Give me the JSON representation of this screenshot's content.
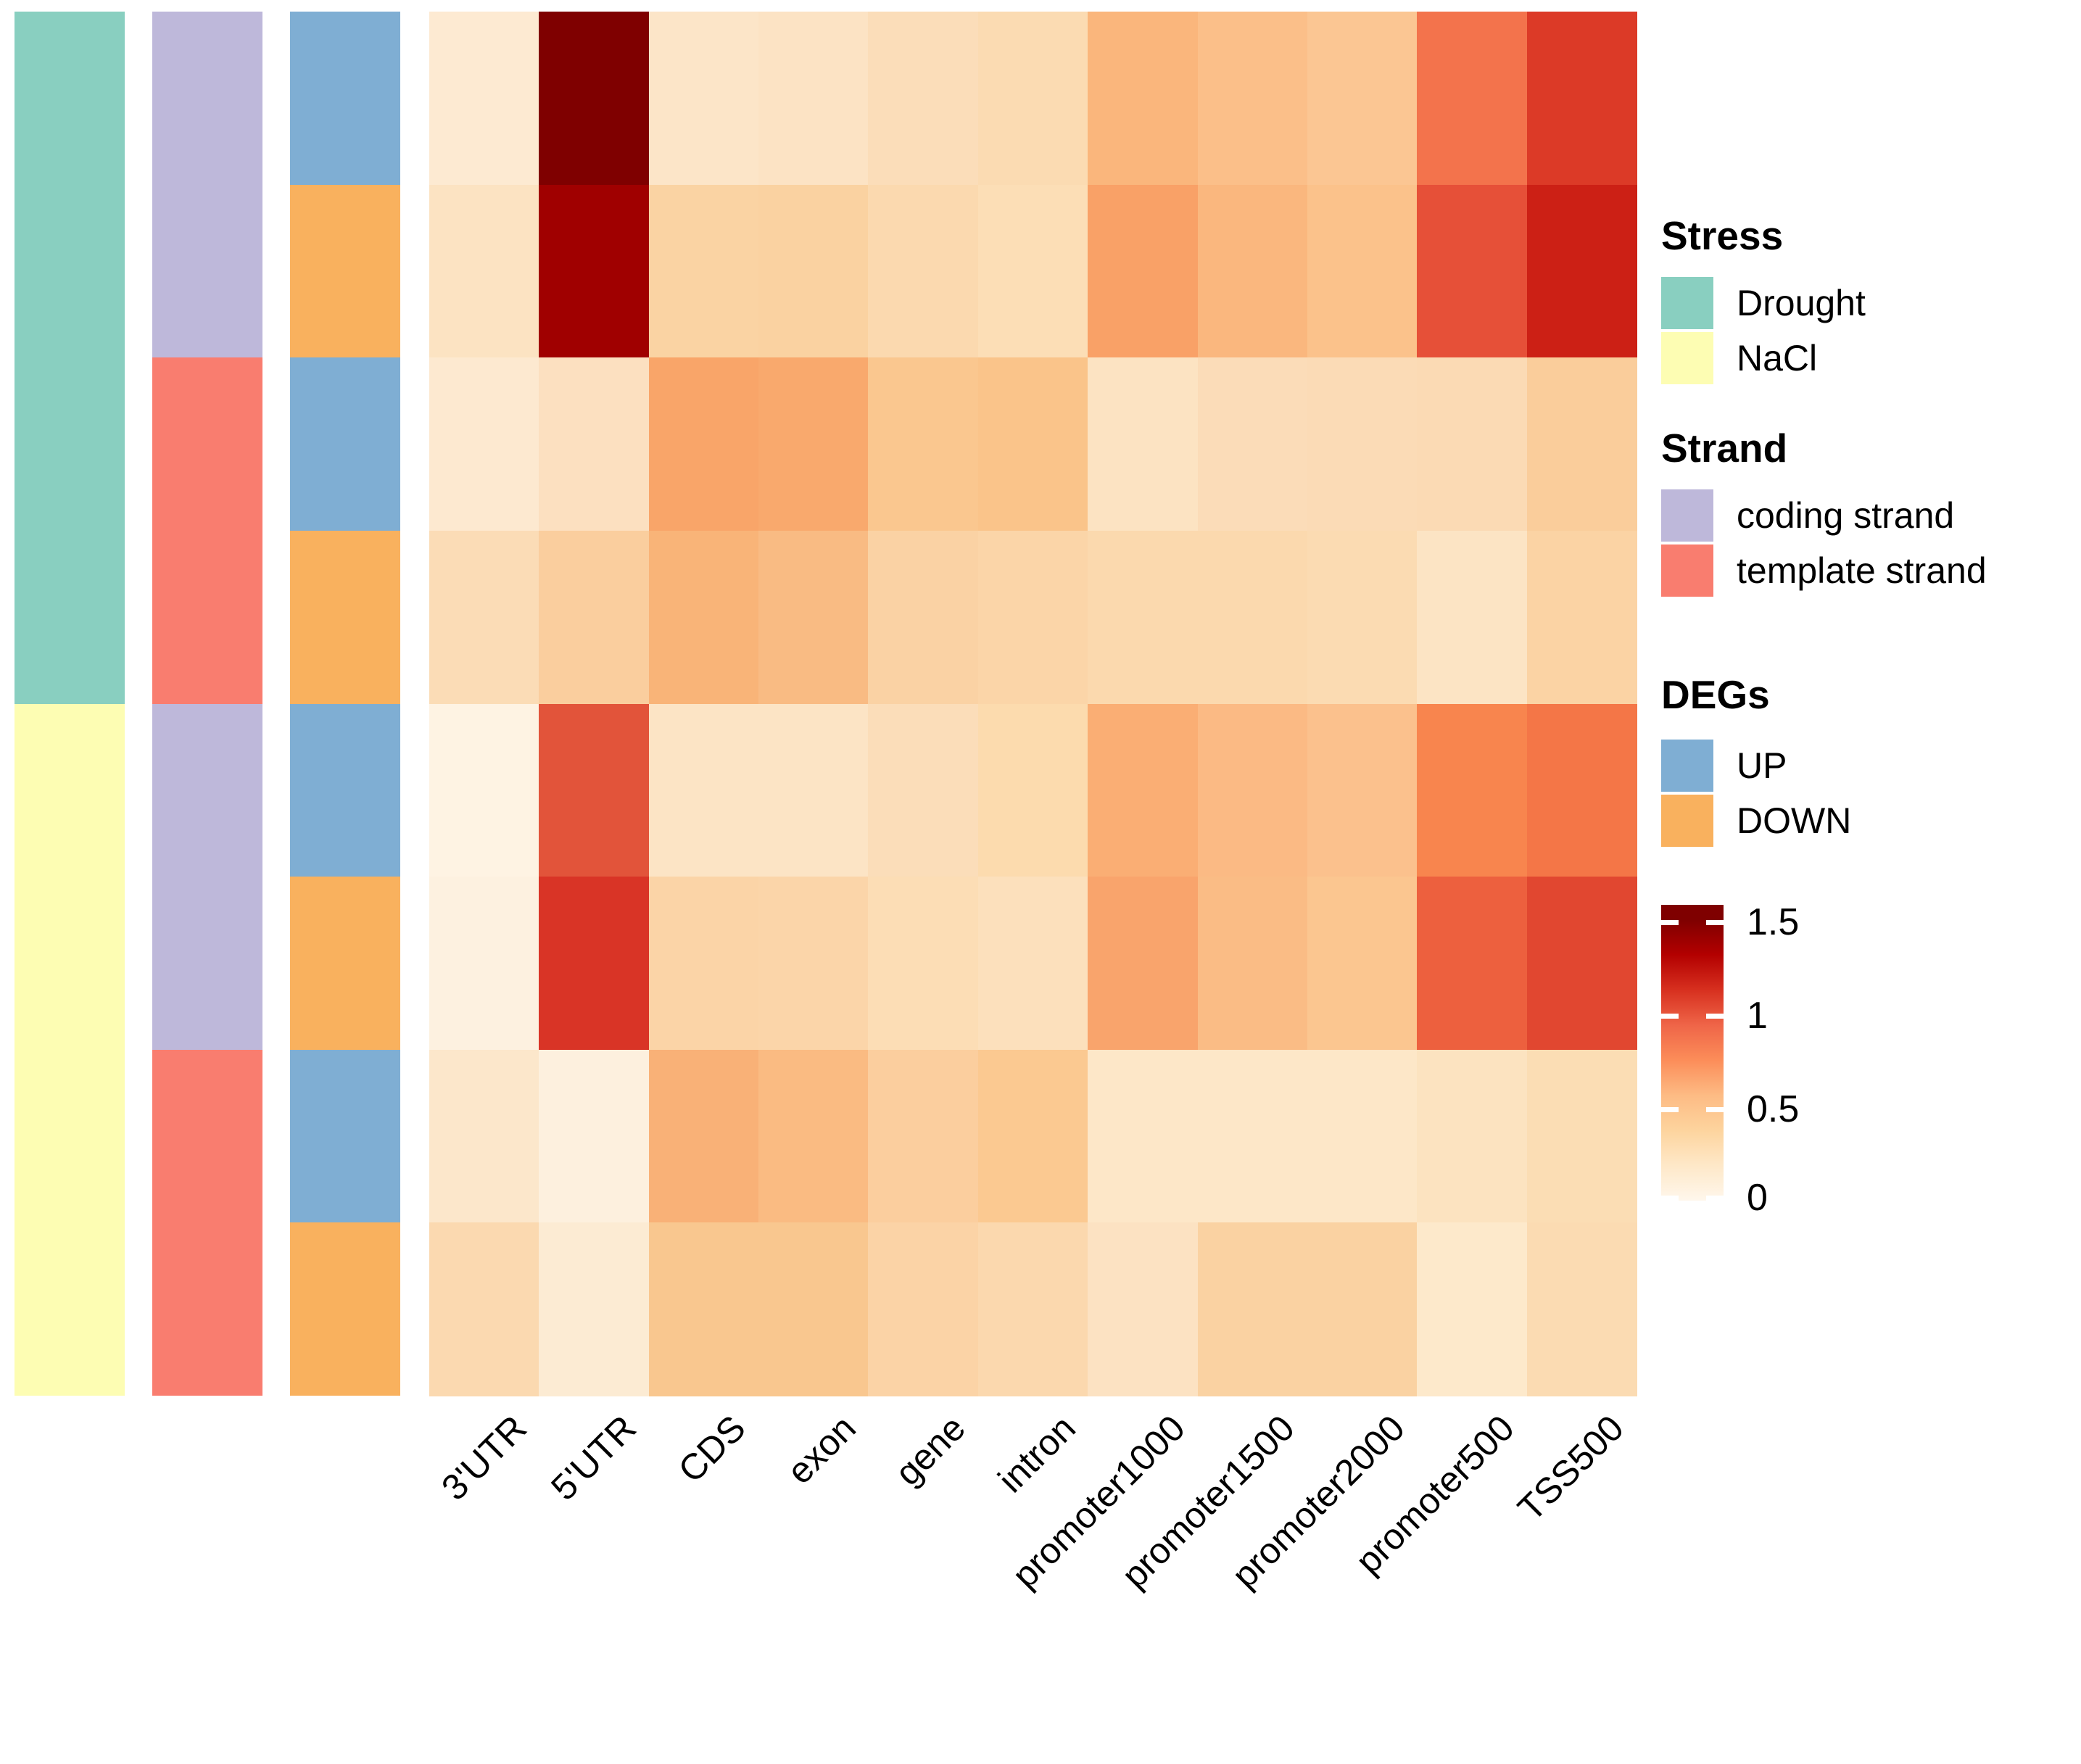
{
  "heatmap": {
    "columns": [
      "3'UTR",
      "5'UTR",
      "CDS",
      "exon",
      "gene",
      "intron",
      "promoter1000",
      "promoter1500",
      "promoter2000",
      "promoter500",
      "TSS500"
    ],
    "rows": [
      {
        "stress": "Drought",
        "strand": "coding strand",
        "deg": "UP",
        "colors": [
          "#FDEAD2",
          "#7F0000",
          "#FCE5C8",
          "#FCE3C4",
          "#FBDDB9",
          "#FBDBB2",
          "#FAB67C",
          "#FBBF89",
          "#FBC693",
          "#F3734C",
          "#DC3A27"
        ],
        "values": [
          0.17,
          1.5,
          0.2,
          0.22,
          0.26,
          0.29,
          0.59,
          0.54,
          0.5,
          0.9,
          1.09
        ]
      },
      {
        "stress": "Drought",
        "strand": "coding strand",
        "deg": "DOWN",
        "colors": [
          "#FCE3C2",
          "#A00000",
          "#FAD3A3",
          "#FAD2A1",
          "#FBD9AF",
          "#FCDEB6",
          "#F9A167",
          "#FAB77E",
          "#FBC28B",
          "#E65038",
          "#CC2015"
        ],
        "values": [
          0.23,
          1.39,
          0.38,
          0.39,
          0.31,
          0.27,
          0.68,
          0.58,
          0.52,
          1.0,
          1.17
        ]
      },
      {
        "stress": "Drought",
        "strand": "template strand",
        "deg": "UP",
        "colors": [
          "#FDE9D0",
          "#FCE0C0",
          "#F9A569",
          "#F9A96D",
          "#FAC78F",
          "#FAC48A",
          "#FCE3C2",
          "#FBDCB8",
          "#FBDBB6",
          "#FBDAB4",
          "#FACD9B"
        ],
        "values": [
          0.17,
          0.24,
          0.66,
          0.64,
          0.49,
          0.51,
          0.22,
          0.28,
          0.29,
          0.29,
          0.43
        ]
      },
      {
        "stress": "Drought",
        "strand": "template strand",
        "deg": "DOWN",
        "colors": [
          "#FBDCB6",
          "#FACE9E",
          "#F9B478",
          "#F9BB83",
          "#FAD2A4",
          "#FBD5A8",
          "#FBD9AE",
          "#FBD9AE",
          "#FBDBB2",
          "#FCE4C4",
          "#FBD3A4"
        ],
        "values": [
          0.28,
          0.42,
          0.6,
          0.56,
          0.39,
          0.36,
          0.32,
          0.32,
          0.29,
          0.21,
          0.38
        ]
      },
      {
        "stress": "NaCl",
        "strand": "coding strand",
        "deg": "UP",
        "colors": [
          "#FEF3E3",
          "#E2543A",
          "#FCE4C5",
          "#FCE4C5",
          "#FBDDB9",
          "#FCDBAE",
          "#FAAE74",
          "#FBBA84",
          "#FBC18D",
          "#F8854E",
          "#F47647"
        ],
        "values": [
          0.06,
          0.98,
          0.21,
          0.21,
          0.26,
          0.3,
          0.62,
          0.56,
          0.53,
          0.81,
          0.89
        ]
      },
      {
        "stress": "NaCl",
        "strand": "coding strand",
        "deg": "DOWN",
        "colors": [
          "#FDF1E0",
          "#D93426",
          "#FBD4A7",
          "#FBD5A9",
          "#FCDDB5",
          "#FCE0BC",
          "#F9A46C",
          "#FABC85",
          "#FBC690",
          "#ED603E",
          "#E14730"
        ],
        "values": [
          0.09,
          1.12,
          0.37,
          0.36,
          0.27,
          0.25,
          0.66,
          0.55,
          0.5,
          0.95,
          1.03
        ]
      },
      {
        "stress": "NaCl",
        "strand": "template strand",
        "deg": "UP",
        "colors": [
          "#FCE7CB",
          "#FDF0DE",
          "#F9B177",
          "#FABB82",
          "#FBCE9E",
          "#FBC991",
          "#FDE7C8",
          "#FDE7C8",
          "#FDE7C8",
          "#FCE3C0",
          "#FBDDB4"
        ],
        "values": [
          0.19,
          0.1,
          0.61,
          0.56,
          0.42,
          0.48,
          0.19,
          0.19,
          0.19,
          0.23,
          0.28
        ]
      },
      {
        "stress": "NaCl",
        "strand": "template strand",
        "deg": "DOWN",
        "colors": [
          "#FBD9B0",
          "#FCEBD3",
          "#F9C78F",
          "#F9C78F",
          "#FBD3A6",
          "#FBD8AE",
          "#FCE2C2",
          "#FAD2A2",
          "#FAD2A2",
          "#FDE9CB",
          "#FBDBB2"
        ],
        "values": [
          0.31,
          0.16,
          0.49,
          0.49,
          0.37,
          0.32,
          0.23,
          0.38,
          0.38,
          0.18,
          0.29
        ]
      }
    ]
  },
  "annotations": {
    "stress": {
      "title": "Stress",
      "items": [
        {
          "label": "Drought",
          "color": "#89CFC0"
        },
        {
          "label": "NaCl",
          "color": "#FDFDB3"
        }
      ]
    },
    "strand": {
      "title": "Strand",
      "items": [
        {
          "label": "coding strand",
          "color": "#BEB8DA"
        },
        {
          "label": "template strand",
          "color": "#F97D6F"
        }
      ]
    },
    "degs": {
      "title": "DEGs",
      "items": [
        {
          "label": "UP",
          "color": "#7FAED3"
        },
        {
          "label": "DOWN",
          "color": "#F9B15E"
        }
      ]
    }
  },
  "colorbar": {
    "ticks": [
      {
        "label": "1.5",
        "value": 1.5
      },
      {
        "label": "1",
        "value": 1.0
      },
      {
        "label": "0.5",
        "value": 0.5
      },
      {
        "label": "0",
        "value": 0.0
      }
    ],
    "min": 0,
    "max": 1.5,
    "top_value": 1.58,
    "palette": [
      "#FFF7EC",
      "#FEE8C8",
      "#FDD49E",
      "#FDBB84",
      "#FC8D59",
      "#EF6548",
      "#D7301F",
      "#B30000",
      "#7F0000"
    ]
  },
  "chart_data": {
    "type": "heatmap",
    "title": "",
    "columns": [
      "3'UTR",
      "5'UTR",
      "CDS",
      "exon",
      "gene",
      "intron",
      "promoter1000",
      "promoter1500",
      "promoter2000",
      "promoter500",
      "TSS500"
    ],
    "row_annotation_tracks": [
      "Stress",
      "Strand",
      "DEGs"
    ],
    "rows": [
      {
        "Stress": "Drought",
        "Strand": "coding strand",
        "DEGs": "UP",
        "values": [
          0.17,
          1.5,
          0.2,
          0.22,
          0.26,
          0.29,
          0.59,
          0.54,
          0.5,
          0.9,
          1.09
        ]
      },
      {
        "Stress": "Drought",
        "Strand": "coding strand",
        "DEGs": "DOWN",
        "values": [
          0.23,
          1.39,
          0.38,
          0.39,
          0.31,
          0.27,
          0.68,
          0.58,
          0.52,
          1.0,
          1.17
        ]
      },
      {
        "Stress": "Drought",
        "Strand": "template strand",
        "DEGs": "UP",
        "values": [
          0.17,
          0.24,
          0.66,
          0.64,
          0.49,
          0.51,
          0.22,
          0.28,
          0.29,
          0.29,
          0.43
        ]
      },
      {
        "Stress": "Drought",
        "Strand": "template strand",
        "DEGs": "DOWN",
        "values": [
          0.28,
          0.42,
          0.6,
          0.56,
          0.39,
          0.36,
          0.32,
          0.32,
          0.29,
          0.21,
          0.38
        ]
      },
      {
        "Stress": "NaCl",
        "Strand": "coding strand",
        "DEGs": "UP",
        "values": [
          0.06,
          0.98,
          0.21,
          0.21,
          0.26,
          0.3,
          0.62,
          0.56,
          0.53,
          0.81,
          0.89
        ]
      },
      {
        "Stress": "NaCl",
        "Strand": "coding strand",
        "DEGs": "DOWN",
        "values": [
          0.09,
          1.12,
          0.37,
          0.36,
          0.27,
          0.25,
          0.66,
          0.55,
          0.5,
          0.95,
          1.03
        ]
      },
      {
        "Stress": "NaCl",
        "Strand": "template strand",
        "DEGs": "UP",
        "values": [
          0.19,
          0.1,
          0.61,
          0.56,
          0.42,
          0.48,
          0.19,
          0.19,
          0.19,
          0.23,
          0.28
        ]
      },
      {
        "Stress": "NaCl",
        "Strand": "template strand",
        "DEGs": "DOWN",
        "values": [
          0.31,
          0.16,
          0.49,
          0.49,
          0.37,
          0.32,
          0.23,
          0.38,
          0.38,
          0.18,
          0.29
        ]
      }
    ],
    "color_scale": {
      "min": 0,
      "max": 1.5,
      "ticks": [
        0,
        0.5,
        1,
        1.5
      ],
      "palette": "OrRd",
      "legend_position": "right"
    },
    "grid": false
  }
}
